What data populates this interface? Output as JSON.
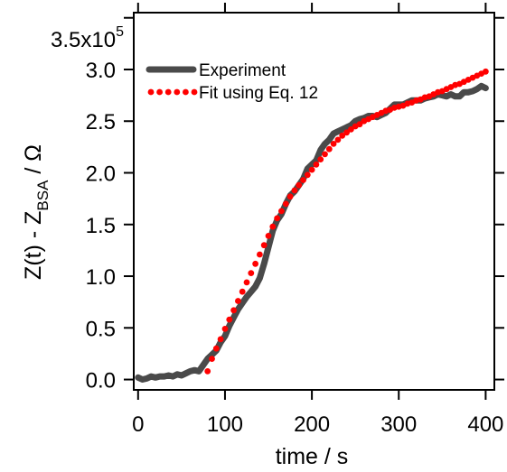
{
  "chart_data": {
    "type": "line",
    "title": "",
    "xlabel": "time / s",
    "ylabel_main": "Z(t) - Z",
    "ylabel_sub": "BSA",
    "ylabel_tail": " / Ω",
    "xlim": [
      -5,
      410
    ],
    "ylim": [
      -0.1,
      3.55
    ],
    "y_multiplier_label": "3.5x10",
    "y_multiplier_exp": "5",
    "grid": false,
    "legend_position": "top-left",
    "x_ticks": [
      {
        "value": 0,
        "label": "0"
      },
      {
        "value": 100,
        "label": "100"
      },
      {
        "value": 200,
        "label": "200"
      },
      {
        "value": 300,
        "label": "300"
      },
      {
        "value": 400,
        "label": "400"
      }
    ],
    "y_ticks": [
      {
        "value": 0.0,
        "label": "0.0"
      },
      {
        "value": 0.5,
        "label": "0.5"
      },
      {
        "value": 1.0,
        "label": "1.0"
      },
      {
        "value": 1.5,
        "label": "1.5"
      },
      {
        "value": 2.0,
        "label": "2.0"
      },
      {
        "value": 2.5,
        "label": "2.5"
      },
      {
        "value": 3.0,
        "label": "3.0"
      }
    ],
    "series": [
      {
        "name": "Experiment",
        "style": "solid",
        "color": "#4a4a4a",
        "x": [
          0,
          5,
          10,
          15,
          20,
          25,
          30,
          35,
          40,
          45,
          50,
          55,
          60,
          65,
          70,
          75,
          80,
          85,
          90,
          95,
          100,
          105,
          110,
          115,
          120,
          125,
          130,
          135,
          140,
          145,
          150,
          155,
          160,
          165,
          170,
          175,
          180,
          185,
          190,
          195,
          200,
          205,
          210,
          215,
          220,
          225,
          230,
          235,
          240,
          245,
          250,
          255,
          260,
          265,
          270,
          275,
          280,
          285,
          290,
          295,
          300,
          305,
          310,
          315,
          320,
          325,
          330,
          335,
          340,
          345,
          350,
          355,
          360,
          365,
          370,
          375,
          380,
          385,
          390,
          395,
          400
        ],
        "y": [
          0.02,
          0.0,
          0.01,
          0.03,
          0.02,
          0.03,
          0.03,
          0.04,
          0.03,
          0.05,
          0.04,
          0.06,
          0.08,
          0.09,
          0.08,
          0.14,
          0.2,
          0.24,
          0.28,
          0.36,
          0.42,
          0.52,
          0.6,
          0.68,
          0.74,
          0.8,
          0.85,
          0.9,
          0.98,
          1.12,
          1.28,
          1.44,
          1.54,
          1.6,
          1.7,
          1.78,
          1.82,
          1.88,
          1.94,
          2.04,
          2.08,
          2.12,
          2.22,
          2.28,
          2.32,
          2.38,
          2.4,
          2.42,
          2.44,
          2.46,
          2.5,
          2.52,
          2.53,
          2.55,
          2.55,
          2.54,
          2.56,
          2.58,
          2.62,
          2.66,
          2.66,
          2.66,
          2.68,
          2.7,
          2.7,
          2.7,
          2.72,
          2.73,
          2.74,
          2.76,
          2.75,
          2.74,
          2.76,
          2.74,
          2.74,
          2.78,
          2.78,
          2.79,
          2.81,
          2.84,
          2.82
        ]
      },
      {
        "name": "Fit using Eq. 12",
        "style": "dotted",
        "color": "#ff0000",
        "x": [
          80,
          85,
          90,
          95,
          100,
          105,
          110,
          115,
          120,
          125,
          130,
          135,
          140,
          145,
          150,
          155,
          160,
          165,
          170,
          175,
          180,
          185,
          190,
          195,
          200,
          205,
          210,
          215,
          220,
          225,
          230,
          235,
          240,
          245,
          250,
          255,
          260,
          265,
          270,
          275,
          280,
          285,
          290,
          295,
          300,
          305,
          310,
          315,
          320,
          325,
          330,
          335,
          340,
          345,
          350,
          355,
          360,
          365,
          370,
          375,
          380,
          385,
          390,
          395,
          400
        ],
        "y": [
          0.08,
          0.2,
          0.3,
          0.39,
          0.49,
          0.58,
          0.67,
          0.76,
          0.85,
          0.94,
          1.03,
          1.12,
          1.21,
          1.3,
          1.39,
          1.48,
          1.56,
          1.63,
          1.7,
          1.77,
          1.83,
          1.88,
          1.93,
          1.98,
          2.03,
          2.08,
          2.13,
          2.18,
          2.23,
          2.28,
          2.32,
          2.36,
          2.39,
          2.42,
          2.45,
          2.47,
          2.5,
          2.52,
          2.54,
          2.56,
          2.58,
          2.6,
          2.61,
          2.63,
          2.64,
          2.65,
          2.67,
          2.68,
          2.7,
          2.71,
          2.73,
          2.74,
          2.76,
          2.78,
          2.79,
          2.81,
          2.83,
          2.85,
          2.86,
          2.88,
          2.9,
          2.92,
          2.94,
          2.96,
          2.98
        ]
      }
    ]
  }
}
